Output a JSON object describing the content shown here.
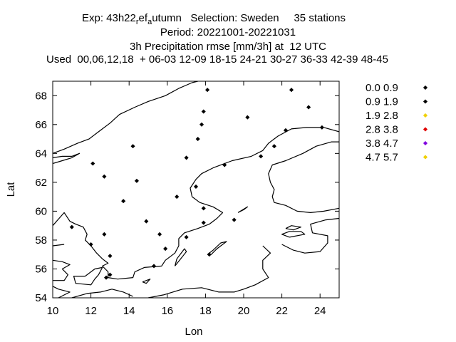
{
  "chart_data": {
    "type": "scatter",
    "title_lines": [
      {
        "pre": "Exp: 43h22",
        "sub1": "r",
        "mid": "ef",
        "sub2": "a",
        "post": "utumn   Selection: Sweden     35 stations"
      },
      {
        "text": "Period: 20221001-20221031"
      },
      {
        "text": "3h Precipitation rmse [mm/3h] at  12 UTC"
      },
      {
        "text": "Used  00,06,12,18  + 06-03 12-09 18-15 24-21 30-27 36-33 42-39 48-45"
      }
    ],
    "xlabel": "Lon",
    "ylabel": "Lat",
    "xlim": [
      10,
      25
    ],
    "ylim": [
      54,
      69
    ],
    "xticks": [
      10,
      12,
      14,
      16,
      18,
      20,
      22,
      24
    ],
    "yticks": [
      54,
      56,
      58,
      60,
      62,
      64,
      66,
      68
    ],
    "grid": false,
    "legend_position": "right",
    "legend": [
      {
        "label": "0.0 0.9",
        "color": "#000000"
      },
      {
        "label": "0.9 1.9",
        "color": "#000000"
      },
      {
        "label": "1.9 2.8",
        "color": "#f0d000"
      },
      {
        "label": "2.8 3.8",
        "color": "#e00000"
      },
      {
        "label": "3.8 4.7",
        "color": "#8000e0"
      },
      {
        "label": "4.7 5.7",
        "color": "#f0d000"
      }
    ],
    "points": [
      {
        "x": 18.1,
        "y": 68.4,
        "c": 0
      },
      {
        "x": 22.5,
        "y": 68.4,
        "c": 0
      },
      {
        "x": 23.4,
        "y": 67.2,
        "c": 0
      },
      {
        "x": 17.9,
        "y": 66.9,
        "c": 1
      },
      {
        "x": 20.2,
        "y": 66.5,
        "c": 0
      },
      {
        "x": 17.8,
        "y": 66.0,
        "c": 0
      },
      {
        "x": 24.1,
        "y": 65.8,
        "c": 0
      },
      {
        "x": 22.2,
        "y": 65.6,
        "c": 0
      },
      {
        "x": 17.6,
        "y": 65.0,
        "c": 0
      },
      {
        "x": 14.2,
        "y": 64.5,
        "c": 0
      },
      {
        "x": 21.6,
        "y": 64.5,
        "c": 0
      },
      {
        "x": 20.9,
        "y": 63.8,
        "c": 0
      },
      {
        "x": 17.0,
        "y": 63.7,
        "c": 0
      },
      {
        "x": 12.1,
        "y": 63.3,
        "c": 0
      },
      {
        "x": 19.0,
        "y": 63.2,
        "c": 0
      },
      {
        "x": 12.7,
        "y": 62.4,
        "c": 0
      },
      {
        "x": 14.4,
        "y": 62.1,
        "c": 0
      },
      {
        "x": 17.5,
        "y": 61.7,
        "c": 0
      },
      {
        "x": 16.5,
        "y": 61.0,
        "c": 0
      },
      {
        "x": 13.7,
        "y": 60.7,
        "c": 0
      },
      {
        "x": 17.9,
        "y": 60.2,
        "c": 0
      },
      {
        "x": 19.5,
        "y": 59.4,
        "c": 0
      },
      {
        "x": 14.9,
        "y": 59.3,
        "c": 0
      },
      {
        "x": 17.9,
        "y": 59.2,
        "c": 0
      },
      {
        "x": 11.0,
        "y": 58.9,
        "c": 0
      },
      {
        "x": 12.7,
        "y": 58.4,
        "c": 0
      },
      {
        "x": 15.6,
        "y": 58.4,
        "c": 0
      },
      {
        "x": 17.0,
        "y": 58.2,
        "c": 0
      },
      {
        "x": 12.0,
        "y": 57.7,
        "c": 0
      },
      {
        "x": 15.9,
        "y": 57.4,
        "c": 0
      },
      {
        "x": 18.2,
        "y": 57.0,
        "c": 0
      },
      {
        "x": 13.0,
        "y": 56.9,
        "c": 0
      },
      {
        "x": 15.3,
        "y": 56.2,
        "c": 0
      },
      {
        "x": 13.0,
        "y": 55.6,
        "c": 0
      },
      {
        "x": 12.8,
        "y": 55.4,
        "c": 0
      }
    ],
    "coastlines": [
      [
        [
          10.0,
          64.0
        ],
        [
          10.6,
          64.3
        ],
        [
          11.3,
          64.7
        ],
        [
          11.9,
          65.0
        ],
        [
          12.5,
          65.6
        ],
        [
          13.0,
          66.1
        ],
        [
          13.5,
          66.7
        ],
        [
          14.3,
          67.2
        ],
        [
          15.0,
          67.6
        ],
        [
          15.9,
          68.0
        ],
        [
          16.6,
          68.5
        ],
        [
          17.3,
          68.9
        ],
        [
          17.6,
          69.0
        ]
      ],
      [
        [
          10.0,
          63.3
        ],
        [
          10.5,
          63.5
        ],
        [
          11.0,
          63.7
        ],
        [
          11.4,
          64.0
        ],
        [
          11.0,
          63.8
        ],
        [
          10.5,
          63.8
        ],
        [
          10.0,
          63.7
        ]
      ],
      [
        [
          10.0,
          59.0
        ],
        [
          10.4,
          59.6
        ],
        [
          10.6,
          59.9
        ],
        [
          10.9,
          59.3
        ],
        [
          11.2,
          59.1
        ],
        [
          11.6,
          58.9
        ],
        [
          11.8,
          58.4
        ],
        [
          11.7,
          58.0
        ],
        [
          12.0,
          57.6
        ],
        [
          12.3,
          57.1
        ],
        [
          12.6,
          56.7
        ],
        [
          12.9,
          56.4
        ],
        [
          12.6,
          56.2
        ],
        [
          12.9,
          55.8
        ],
        [
          12.9,
          55.4
        ],
        [
          13.4,
          55.3
        ],
        [
          14.2,
          55.4
        ],
        [
          14.3,
          55.8
        ],
        [
          14.8,
          56.1
        ],
        [
          15.7,
          56.2
        ],
        [
          15.9,
          56.6
        ],
        [
          16.4,
          57.1
        ],
        [
          16.6,
          57.6
        ],
        [
          16.6,
          58.1
        ],
        [
          16.9,
          58.5
        ],
        [
          17.6,
          58.8
        ],
        [
          18.2,
          59.1
        ],
        [
          18.6,
          59.5
        ],
        [
          18.9,
          59.9
        ],
        [
          18.4,
          60.3
        ],
        [
          17.7,
          60.6
        ],
        [
          17.3,
          61.0
        ],
        [
          17.2,
          61.6
        ],
        [
          17.5,
          62.2
        ],
        [
          17.8,
          62.6
        ],
        [
          18.4,
          63.0
        ],
        [
          19.4,
          63.5
        ],
        [
          20.4,
          63.8
        ],
        [
          21.0,
          64.2
        ],
        [
          21.3,
          64.7
        ],
        [
          21.8,
          65.2
        ],
        [
          22.5,
          65.7
        ],
        [
          23.3,
          65.8
        ],
        [
          24.2,
          65.8
        ],
        [
          25.0,
          65.5
        ]
      ],
      [
        [
          25.0,
          64.8
        ],
        [
          24.6,
          64.8
        ],
        [
          23.8,
          64.5
        ],
        [
          23.1,
          64.0
        ],
        [
          22.2,
          63.5
        ],
        [
          21.5,
          63.2
        ],
        [
          21.3,
          62.6
        ],
        [
          21.4,
          62.0
        ],
        [
          21.6,
          61.5
        ],
        [
          21.5,
          61.0
        ],
        [
          21.6,
          60.6
        ],
        [
          22.2,
          60.4
        ],
        [
          22.8,
          60.0
        ],
        [
          23.5,
          59.9
        ],
        [
          24.2,
          60.0
        ],
        [
          25.0,
          60.2
        ]
      ],
      [
        [
          21.0,
          57.6
        ],
        [
          21.4,
          57.1
        ],
        [
          21.0,
          56.6
        ],
        [
          21.0,
          56.0
        ],
        [
          21.3,
          55.4
        ],
        [
          20.6,
          54.9
        ],
        [
          20.0,
          54.6
        ],
        [
          19.5,
          54.4
        ],
        [
          18.7,
          54.4
        ],
        [
          17.8,
          54.7
        ],
        [
          16.8,
          54.6
        ],
        [
          15.8,
          54.2
        ],
        [
          15.0,
          54.0
        ]
      ],
      [
        [
          22.0,
          57.7
        ],
        [
          22.6,
          57.3
        ],
        [
          23.2,
          57.1
        ],
        [
          24.0,
          57.2
        ],
        [
          24.4,
          57.8
        ],
        [
          24.4,
          58.3
        ],
        [
          23.6,
          58.5
        ],
        [
          23.5,
          59.1
        ],
        [
          24.3,
          59.4
        ],
        [
          25.0,
          59.5
        ]
      ],
      [
        [
          10.3,
          54.0
        ],
        [
          10.9,
          54.4
        ],
        [
          10.3,
          54.6
        ],
        [
          10.0,
          54.8
        ]
      ],
      [
        [
          10.6,
          57.7
        ],
        [
          10.0,
          57.6
        ],
        [
          10.0,
          56.6
        ],
        [
          10.5,
          56.5
        ],
        [
          10.9,
          56.3
        ],
        [
          10.5,
          56.0
        ],
        [
          10.8,
          55.6
        ],
        [
          10.6,
          55.2
        ],
        [
          10.0,
          55.2
        ]
      ],
      [
        [
          11.7,
          55.5
        ],
        [
          12.2,
          56.0
        ],
        [
          12.6,
          56.1
        ],
        [
          12.4,
          55.6
        ],
        [
          12.2,
          55.3
        ],
        [
          12.0,
          54.9
        ],
        [
          11.2,
          55.0
        ],
        [
          11.1,
          55.5
        ],
        [
          11.7,
          55.5
        ]
      ],
      [
        [
          18.1,
          57.0
        ],
        [
          18.4,
          57.3
        ],
        [
          18.8,
          57.8
        ],
        [
          19.1,
          57.9
        ],
        [
          18.6,
          57.4
        ],
        [
          18.3,
          57.0
        ],
        [
          18.1,
          57.0
        ]
      ],
      [
        [
          16.4,
          56.2
        ],
        [
          16.7,
          56.7
        ],
        [
          17.0,
          57.2
        ],
        [
          16.9,
          57.4
        ],
        [
          16.5,
          56.7
        ],
        [
          16.4,
          56.2
        ]
      ],
      [
        [
          14.7,
          55.1
        ],
        [
          15.1,
          55.3
        ],
        [
          14.9,
          55.0
        ],
        [
          14.7,
          55.1
        ]
      ],
      [
        [
          19.7,
          59.9
        ],
        [
          20.2,
          60.3
        ],
        [
          20.0,
          60.1
        ],
        [
          19.7,
          59.9
        ]
      ],
      [
        [
          22.4,
          58.2
        ],
        [
          22.0,
          58.4
        ],
        [
          22.4,
          58.6
        ],
        [
          23.0,
          58.6
        ],
        [
          23.2,
          58.4
        ],
        [
          22.4,
          58.2
        ]
      ],
      [
        [
          22.2,
          58.8
        ],
        [
          22.5,
          59.0
        ],
        [
          23.0,
          58.9
        ],
        [
          22.6,
          58.7
        ],
        [
          22.2,
          58.8
        ]
      ],
      [
        [
          11.0,
          54.0
        ],
        [
          11.8,
          54.3
        ],
        [
          12.5,
          54.4
        ],
        [
          13.1,
          54.6
        ],
        [
          13.7,
          54.4
        ],
        [
          14.2,
          54.1
        ]
      ]
    ]
  }
}
